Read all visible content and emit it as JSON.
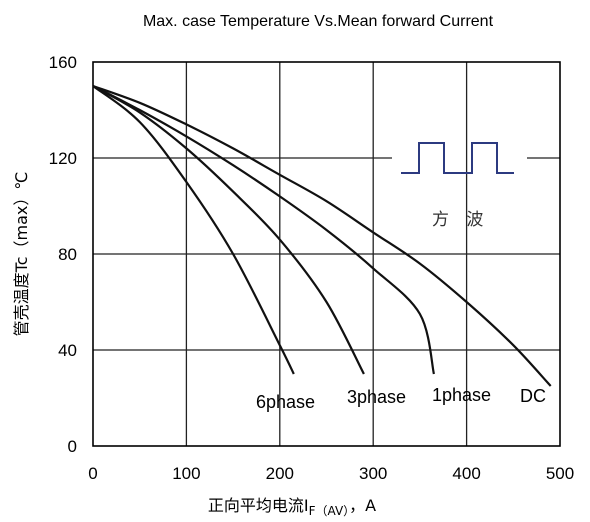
{
  "chart_data": {
    "type": "line",
    "title": "Max. case Temperature Vs.Mean forward Current",
    "xlabel_text": "正向平均电流",
    "xlabel_sym": "I",
    "xlabel_sub": "F（AV）",
    "xlabel_unit": "，A",
    "ylabel": "管壳温度Tc（max）℃",
    "xlim": [
      0,
      500
    ],
    "ylim": [
      0,
      160
    ],
    "x_ticks": [
      "0",
      "100",
      "200",
      "300",
      "400",
      "500"
    ],
    "y_ticks": [
      "0",
      "40",
      "80",
      "120",
      "160"
    ],
    "grid": true,
    "annotation": "方 波",
    "series": [
      {
        "name": "6phase",
        "x": [
          0,
          50,
          100,
          150,
          200,
          215
        ],
        "y": [
          150,
          135,
          110,
          80,
          42,
          30
        ]
      },
      {
        "name": "3phase",
        "x": [
          0,
          50,
          100,
          150,
          200,
          250,
          290
        ],
        "y": [
          150,
          139,
          124,
          106,
          86,
          60,
          30
        ]
      },
      {
        "name": "1phase",
        "x": [
          0,
          50,
          100,
          150,
          200,
          250,
          300,
          350,
          365
        ],
        "y": [
          150,
          140,
          129,
          117,
          104,
          90,
          74,
          55,
          30
        ]
      },
      {
        "name": "DC",
        "x": [
          0,
          50,
          100,
          150,
          200,
          250,
          300,
          350,
          400,
          450,
          490
        ],
        "y": [
          150,
          143,
          134,
          124,
          113,
          102,
          89,
          76,
          60,
          42,
          25
        ]
      }
    ]
  }
}
